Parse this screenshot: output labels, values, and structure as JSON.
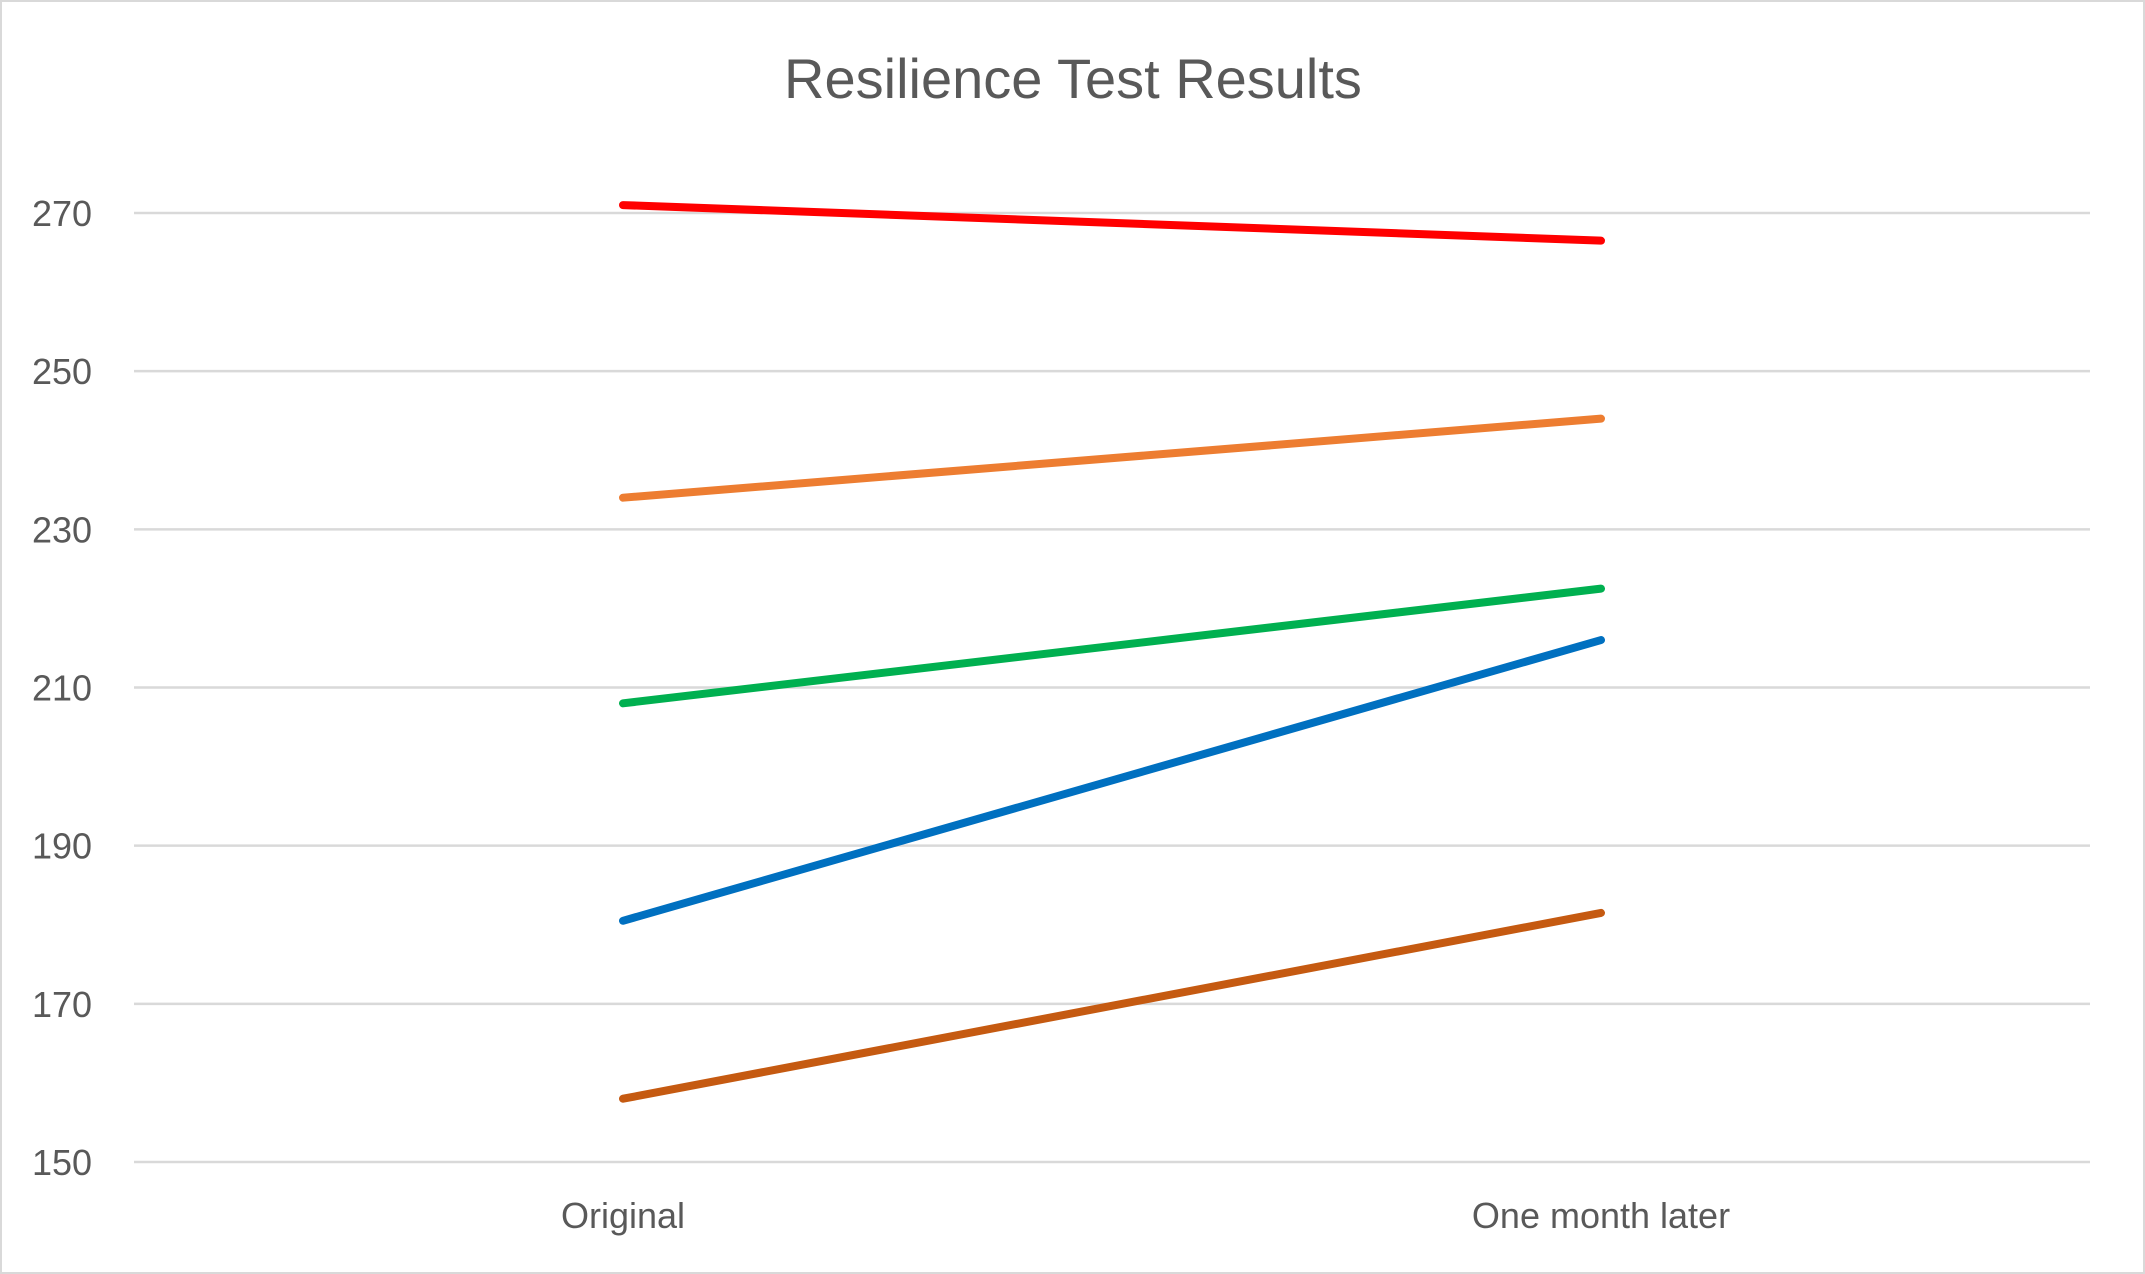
{
  "chart_data": {
    "type": "line",
    "title": "Resilience Test Results",
    "xlabel": "",
    "ylabel": "",
    "categories": [
      "Original",
      "One month later"
    ],
    "ylim": [
      150,
      270
    ],
    "yticks": [
      150,
      170,
      190,
      210,
      230,
      250,
      270
    ],
    "ytick_labels": [
      "150",
      "170",
      "190",
      "210",
      "230",
      "250",
      "270"
    ],
    "grid": true,
    "legend": "none",
    "series": [
      {
        "values": [
          271,
          266.5
        ],
        "color": "#ff0000"
      },
      {
        "values": [
          234,
          244
        ],
        "color": "#ed7d31"
      },
      {
        "values": [
          208,
          222.5
        ],
        "color": "#00b050"
      },
      {
        "values": [
          180.5,
          216
        ],
        "color": "#0070c0"
      },
      {
        "values": [
          158,
          181.5
        ],
        "color": "#c55a11"
      }
    ]
  }
}
